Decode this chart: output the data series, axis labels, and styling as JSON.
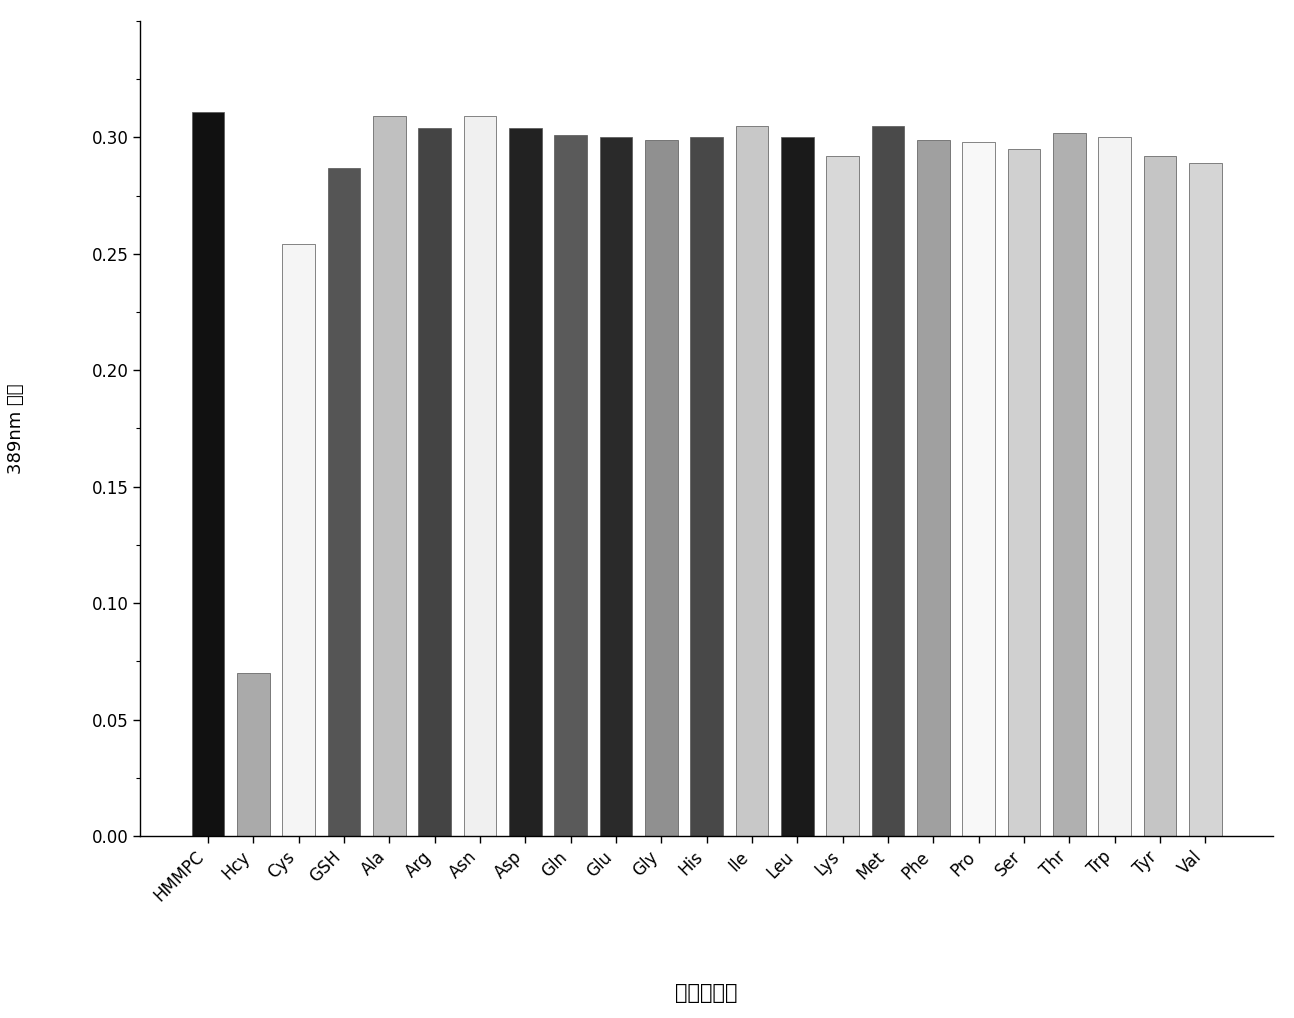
{
  "categories": [
    "HMMPC",
    "Hcy",
    "Cys",
    "GSH",
    "Ala",
    "Arg",
    "Asn",
    "Asp",
    "Gln",
    "Glu",
    "Gly",
    "His",
    "Ile",
    "Leu",
    "Lys",
    "Met",
    "Phe",
    "Pro",
    "Ser",
    "Thr",
    "Trp",
    "Tyr",
    "Val"
  ],
  "values": [
    0.311,
    0.07,
    0.254,
    0.287,
    0.309,
    0.304,
    0.309,
    0.304,
    0.301,
    0.3,
    0.299,
    0.3,
    0.305,
    0.3,
    0.292,
    0.305,
    0.299,
    0.298,
    0.295,
    0.302,
    0.3,
    0.292,
    0.289
  ],
  "colors": [
    "#111111",
    "#aaaaaa",
    "#f5f5f5",
    "#555555",
    "#c0c0c0",
    "#444444",
    "#f0f0f0",
    "#222222",
    "#5a5a5a",
    "#2a2a2a",
    "#909090",
    "#484848",
    "#c8c8c8",
    "#1a1a1a",
    "#d8d8d8",
    "#4a4a4a",
    "#a0a0a0",
    "#f8f8f8",
    "#d0d0d0",
    "#b0b0b0",
    "#f3f3f3",
    "#c5c5c5",
    "#d5d5d5"
  ],
  "ylabel": "389nm 波长",
  "xlabel": "各种氨基酸",
  "ylim": [
    0,
    0.35
  ],
  "yticks": [
    0.0,
    0.05,
    0.1,
    0.15,
    0.2,
    0.25,
    0.3
  ],
  "background_color": "#ffffff",
  "bar_edge_color": "#555555",
  "bar_edge_width": 0.5,
  "ylabel_fontsize": 13,
  "xlabel_fontsize": 15,
  "tick_fontsize": 12,
  "bar_width": 0.72
}
